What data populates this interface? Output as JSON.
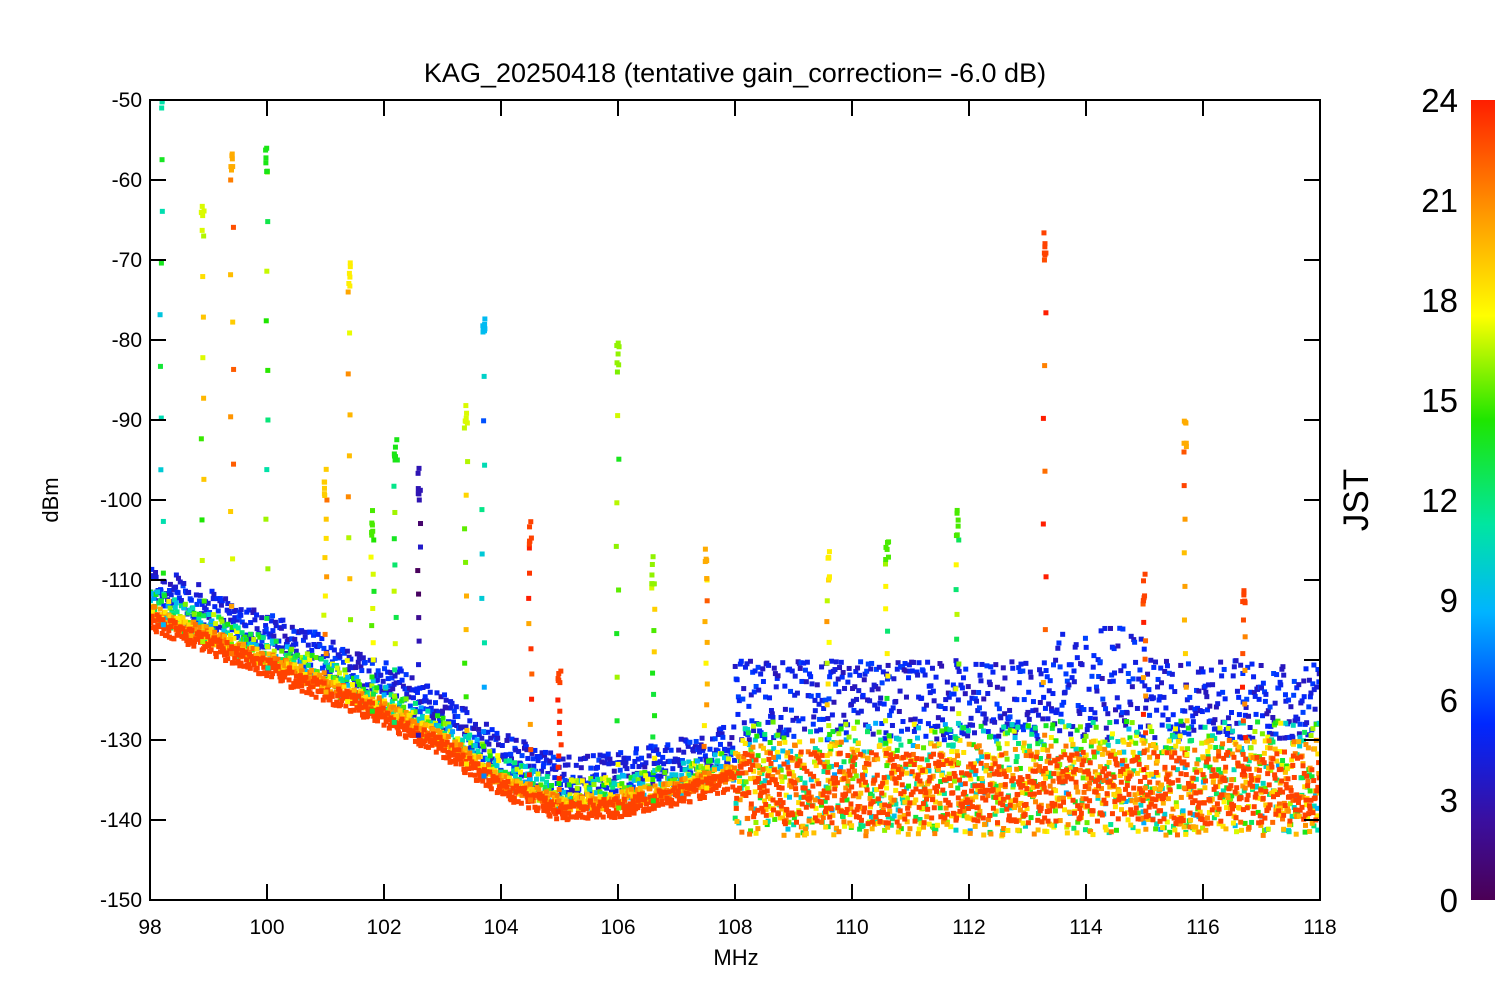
{
  "chart_data": {
    "type": "scatter",
    "title": "KAG_20250418 (tentative gain_correction= -6.0 dB)",
    "xlabel": "MHz",
    "ylabel": "dBm",
    "xlim": [
      98,
      118
    ],
    "ylim": [
      -150,
      -50
    ],
    "x_ticks": [
      "98",
      "100",
      "102",
      "104",
      "106",
      "108",
      "110",
      "112",
      "114",
      "116",
      "118"
    ],
    "y_ticks": [
      "-50",
      "-60",
      "-70",
      "-80",
      "-90",
      "-100",
      "-110",
      "-120",
      "-130",
      "-140",
      "-150"
    ],
    "grid": false,
    "colorbar": {
      "label": "JST",
      "range": [
        0,
        24
      ],
      "ticks": [
        "0",
        "3",
        "6",
        "9",
        "12",
        "15",
        "18",
        "21",
        "24"
      ],
      "colormap": "rainbow (purple → blue → cyan → green → yellow → orange → red)"
    },
    "series": [
      {
        "description_values": "noise floor (dBm) vs frequency",
        "noise_floor": [
          [
            98,
            -115
          ],
          [
            99,
            -118
          ],
          [
            100,
            -121
          ],
          [
            101,
            -124
          ],
          [
            102,
            -127
          ],
          [
            103,
            -131
          ],
          [
            104,
            -136
          ],
          [
            105,
            -139
          ],
          [
            106,
            -138.5
          ],
          [
            107,
            -137
          ],
          [
            108,
            -135
          ],
          [
            108.01,
            -136
          ],
          [
            118,
            -136
          ]
        ]
      }
    ],
    "spikes": [
      {
        "freq": 98.2,
        "top": -51,
        "jst": 11
      },
      {
        "freq": 98.9,
        "top": -67,
        "jst": 17
      },
      {
        "freq": 99.4,
        "top": -60,
        "jst": 20
      },
      {
        "freq": 100.0,
        "top": -59,
        "jst": 14
      },
      {
        "freq": 101.0,
        "top": -100,
        "jst": 19
      },
      {
        "freq": 101.4,
        "top": -74,
        "jst": 18
      },
      {
        "freq": 101.8,
        "top": -105,
        "jst": 15
      },
      {
        "freq": 102.2,
        "top": -95,
        "jst": 14
      },
      {
        "freq": 102.6,
        "top": -100,
        "jst": 3
      },
      {
        "freq": 103.4,
        "top": -91,
        "jst": 17
      },
      {
        "freq": 103.7,
        "top": -79,
        "jst": 9
      },
      {
        "freq": 104.5,
        "top": -106,
        "jst": 23
      },
      {
        "freq": 105.0,
        "top": -125,
        "jst": 23
      },
      {
        "freq": 106.0,
        "top": -84,
        "jst": 16
      },
      {
        "freq": 106.6,
        "top": -111,
        "jst": 16
      },
      {
        "freq": 107.5,
        "top": -110,
        "jst": 20
      },
      {
        "freq": 109.6,
        "top": -110,
        "jst": 18
      },
      {
        "freq": 110.6,
        "top": -108,
        "jst": 15
      },
      {
        "freq": 111.8,
        "top": -105,
        "jst": 15
      },
      {
        "freq": 113.3,
        "top": -70,
        "jst": 23
      },
      {
        "freq": 115.0,
        "top": -113,
        "jst": 23
      },
      {
        "freq": 115.7,
        "top": -94,
        "jst": 20
      },
      {
        "freq": 116.7,
        "top": -115,
        "jst": 23
      }
    ]
  }
}
